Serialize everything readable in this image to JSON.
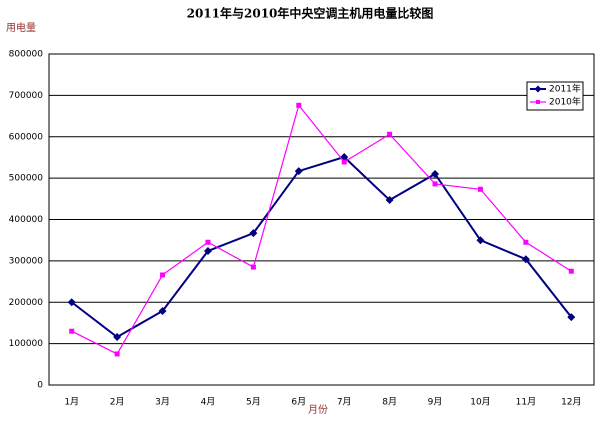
{
  "chart_data": {
    "type": "line",
    "title": "2011年与2010年中央空调主机用电量比较图",
    "y_label": "用电量",
    "x_label": "月份",
    "categories": [
      "1月",
      "2月",
      "3月",
      "4月",
      "5月",
      "6月",
      "7月",
      "8月",
      "9月",
      "10月",
      "11月",
      "12月"
    ],
    "series": [
      {
        "name": "2011年",
        "color": "#000080",
        "marker": "diamond",
        "values": [
          200000,
          116000,
          179000,
          324000,
          367000,
          517000,
          551000,
          447000,
          510000,
          350000,
          304000,
          164000
        ]
      },
      {
        "name": "2010年",
        "color": "#ff00ff",
        "marker": "square",
        "values": [
          130000,
          75000,
          266000,
          345000,
          285000,
          676000,
          539000,
          606000,
          486000,
          473000,
          345000,
          275000
        ]
      }
    ],
    "ylim": [
      0,
      800000
    ],
    "yticks": [
      0,
      100000,
      200000,
      300000,
      400000,
      500000,
      600000,
      700000,
      800000
    ],
    "grid": true,
    "legend": "upper right"
  }
}
